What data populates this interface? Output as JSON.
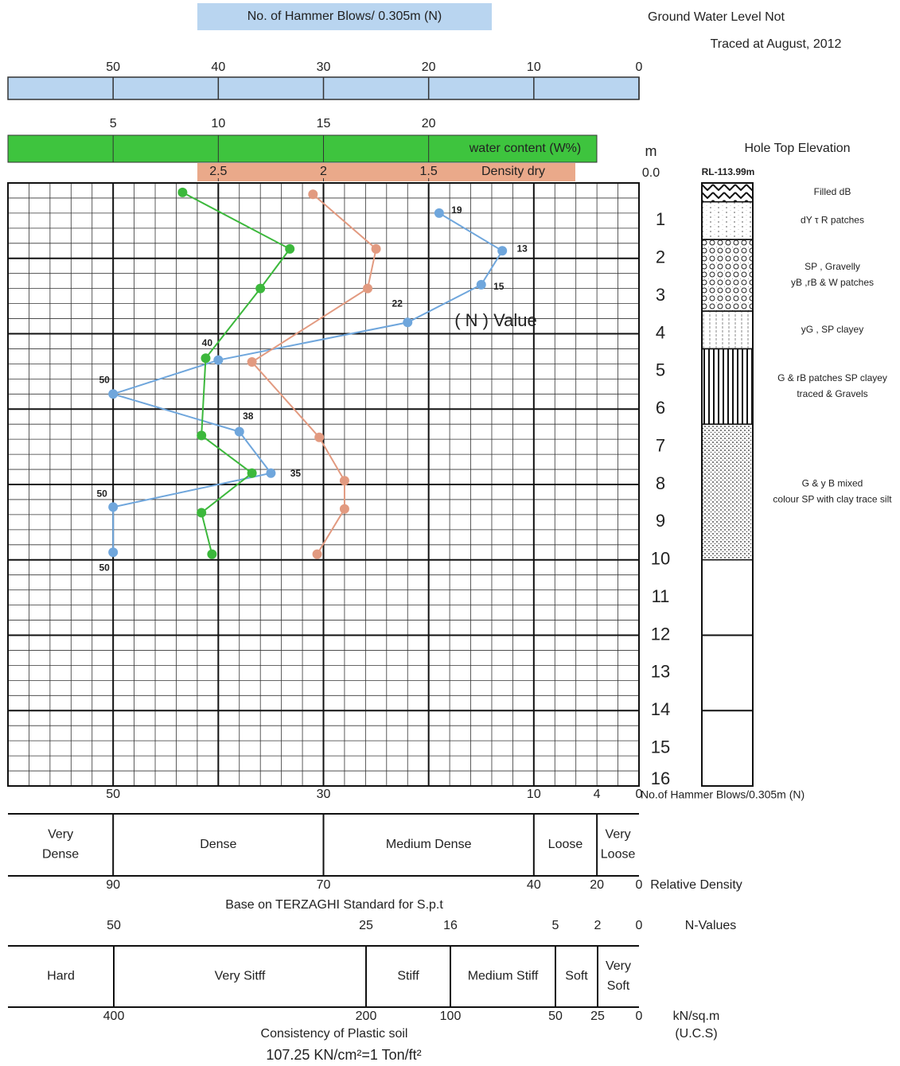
{
  "chart_data": {
    "type": "line",
    "title": "No. of Hammer Blows/ 0.305m (N)",
    "note": [
      "Ground Water Level Not",
      "Traced at August, 2012"
    ],
    "ylabel": "m",
    "ylim": [
      0,
      16
    ],
    "yticks": [
      {
        "value": 0,
        "label": "0.0"
      },
      1,
      2,
      3,
      4,
      5,
      6,
      7,
      8,
      9,
      10,
      11,
      12,
      13,
      14,
      15,
      16
    ],
    "grid": true,
    "axes": {
      "n": {
        "xlim": [
          60,
          0
        ],
        "xticks": [
          50,
          40,
          30,
          20,
          10,
          0
        ],
        "color": "#b9d5f0"
      },
      "w": {
        "xlim": [
          0,
          30
        ],
        "xticks": [
          5,
          10,
          15,
          20
        ],
        "color": "#3ec43e"
      },
      "d": {
        "xlim": [
          3.5,
          0.5
        ],
        "xticks": [
          2.5,
          2,
          1.5
        ],
        "color": "#eaa98a"
      }
    },
    "series": [
      {
        "name": "( N ) Value",
        "axis": "n",
        "color": "#6fa6dc",
        "depth": [
          0.8,
          1.8,
          2.7,
          3.7,
          4.7,
          5.6,
          6.6,
          7.7,
          8.6,
          9.8
        ],
        "values": [
          19,
          13,
          15,
          22,
          40,
          50,
          38,
          35,
          50,
          50
        ]
      },
      {
        "name": "water content (W%)",
        "axis": "w",
        "color": "#3cb83c",
        "depth": [
          0.25,
          1.75,
          2.8,
          4.65,
          6.7,
          7.7,
          8.75,
          9.85
        ],
        "values": [
          8.3,
          13.4,
          12.0,
          9.4,
          9.2,
          11.6,
          9.2,
          9.7
        ]
      },
      {
        "name": "Density dry",
        "axis": "d",
        "color": "#e29a80",
        "depth": [
          0.3,
          1.75,
          2.8,
          4.75,
          6.75,
          7.9,
          8.65,
          9.85
        ],
        "values": [
          2.05,
          1.75,
          1.79,
          2.34,
          2.02,
          1.9,
          1.9,
          2.03
        ]
      }
    ],
    "bottom_axis": {
      "label": "No.of Hammer Blows/0.305m (N)",
      "xticks": [
        50,
        30,
        10,
        4,
        0
      ]
    },
    "relative_density": {
      "classes": [
        [
          "Very",
          "Dense"
        ],
        [
          "Dense"
        ],
        [
          "Medium Dense"
        ],
        [
          "Loose"
        ],
        [
          "Very",
          "Loose"
        ]
      ],
      "ticks": [
        90,
        70,
        40,
        20,
        0
      ],
      "label": "Relative Density",
      "note": "Base on TERZAGHI Standard for S.p.t"
    },
    "consistency": {
      "n_ticks": [
        50,
        25,
        16,
        5,
        2,
        0
      ],
      "n_label": "N-Values",
      "classes": [
        [
          "Hard"
        ],
        [
          "Very Sitff"
        ],
        [
          "Stiff"
        ],
        [
          "Medium Stiff"
        ],
        [
          "Soft"
        ],
        [
          "Very",
          "Soft"
        ]
      ],
      "ticks": [
        400,
        200,
        100,
        50,
        25,
        0
      ],
      "unit": [
        "kN/sq.m",
        "(U.C.S)"
      ],
      "label": "Consistency of Plastic soil",
      "note": "107.25 KN/cm²=1 Ton/ft²"
    },
    "borehole": {
      "title": "Hole Top Elevation",
      "elevation": "RL-113.99m",
      "layers": [
        {
          "from": 0,
          "to": 0.5,
          "description": [
            "Filled dB"
          ]
        },
        {
          "from": 0.5,
          "to": 1.5,
          "description": [
            "dY τ R patches"
          ]
        },
        {
          "from": 1.5,
          "to": 3.4,
          "description": [
            "SP , Gravelly",
            "yB ,rB & W patches"
          ]
        },
        {
          "from": 3.4,
          "to": 4.4,
          "description": [
            "yG , SP clayey"
          ]
        },
        {
          "from": 4.4,
          "to": 6.4,
          "description": [
            "G & rB patches SP clayey",
            "traced & Gravels"
          ]
        },
        {
          "from": 6.4,
          "to": 10,
          "description": [
            "G & y B mixed",
            "colour SP with clay trace silt"
          ]
        }
      ]
    }
  }
}
